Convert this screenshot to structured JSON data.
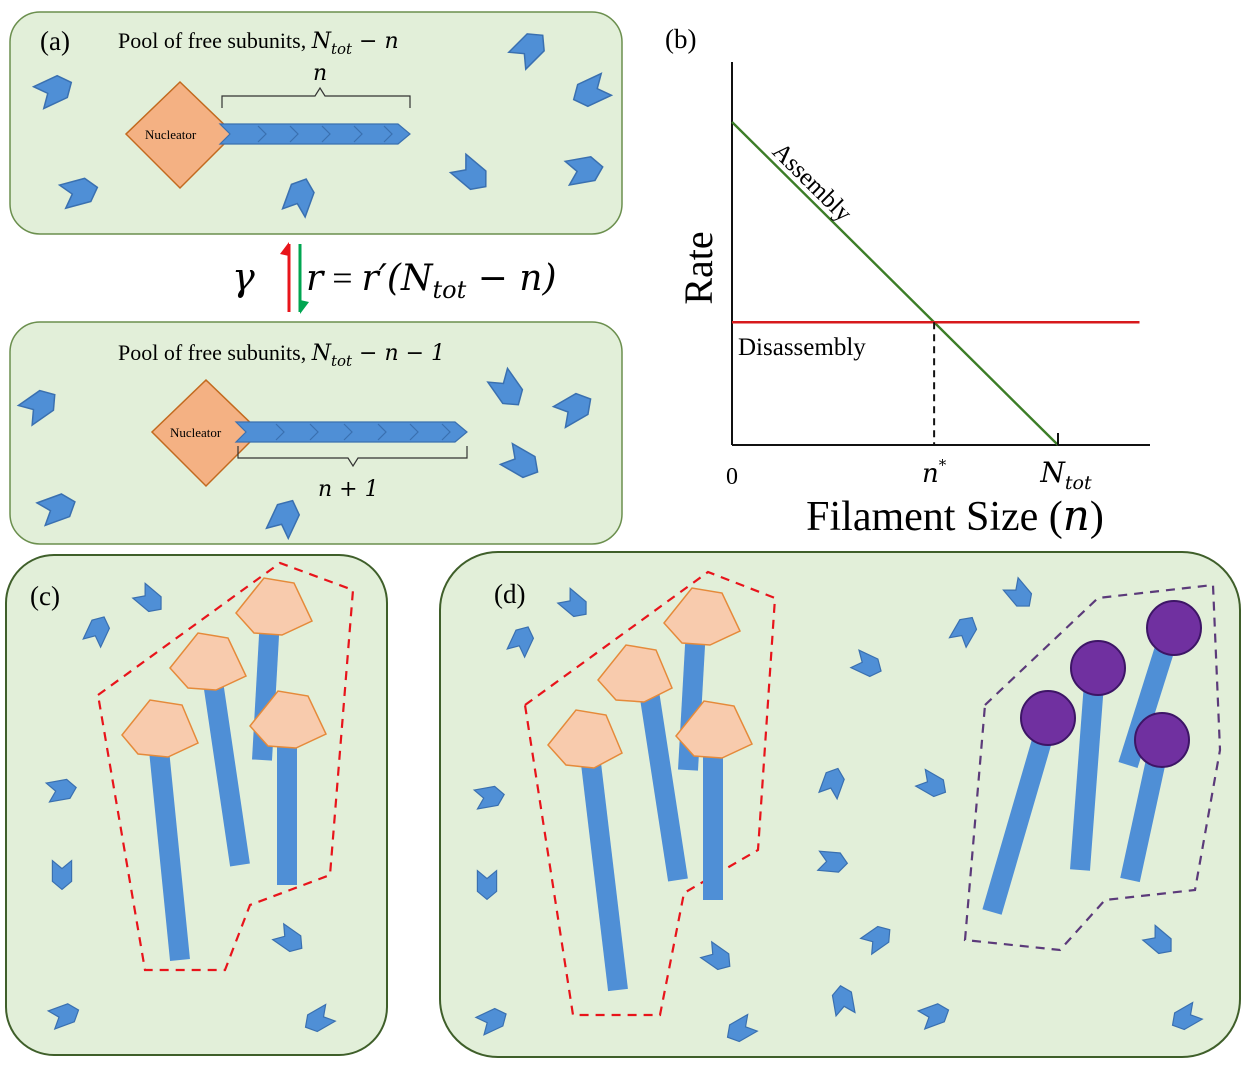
{
  "panel_a": {
    "label": "(a)",
    "pool_text": "Pool of free subunits, ",
    "pool_var_text": "N",
    "pool_var_sub": "tot",
    "pool_rest": " − n",
    "nucleator_label": "Nucleator",
    "n_label": "n"
  },
  "transition": {
    "gamma": "γ",
    "rate_lhs": "r",
    "equals": " = ",
    "rate_rhs_prefix": "r′(",
    "rate_N": "N",
    "rate_N_sub": "tot",
    "rate_rhs_suffix": " − n)",
    "assembly_color": "#00a651",
    "disassembly_color": "#e8141b"
  },
  "panel_a2": {
    "pool_text": "Pool of free subunits, ",
    "pool_var_text": "N",
    "pool_var_sub": "tot",
    "pool_rest": " − n − 1",
    "nucleator_label": "Nucleator",
    "n_label": "n + 1"
  },
  "panel_b": {
    "label": "(b)",
    "chart_data": {
      "type": "line",
      "xlabel": "Filament Size (n)",
      "ylabel": "Rate",
      "x_ticks": [
        "0",
        "n*",
        "Ntot"
      ],
      "series": [
        {
          "name": "Assembly",
          "color": "#3c7d27",
          "x": [
            0,
            1
          ],
          "y": [
            1,
            0
          ]
        },
        {
          "name": "Disassembly",
          "color": "#d7191c",
          "x": [
            0,
            1.25
          ],
          "y": [
            0.38,
            0.38
          ]
        }
      ],
      "annotations": {
        "crossing_x": 0.62,
        "dashed_marker": "n*"
      }
    },
    "x_tick_0": "0",
    "x_tick_nstar": "n",
    "x_tick_nstar_sup": "*",
    "x_tick_ntot": "N",
    "x_tick_ntot_sub": "tot",
    "xlabel_text": "Filament Size (",
    "xlabel_var": "n",
    "xlabel_end": ")",
    "ylabel": "Rate",
    "assembly_label": "Assembly",
    "disassembly_label": "Disassembly"
  },
  "panel_c": {
    "label": "(c)"
  },
  "panel_d": {
    "label": "(d)"
  },
  "colors": {
    "panel_bg": "#e2efd9",
    "panel_border": "#6b8f4e",
    "subunit": "#4f8fd6",
    "subunit_stroke": "#3a70b0",
    "nucleator": "#f4b183",
    "nucleator_light": "#f8cbad",
    "nucleator_stroke": "#d9822b",
    "capper": "#7030a0",
    "capper_stroke": "#3d1566",
    "red_dash": "#e8141b",
    "purple_dash": "#5b3a7a"
  }
}
